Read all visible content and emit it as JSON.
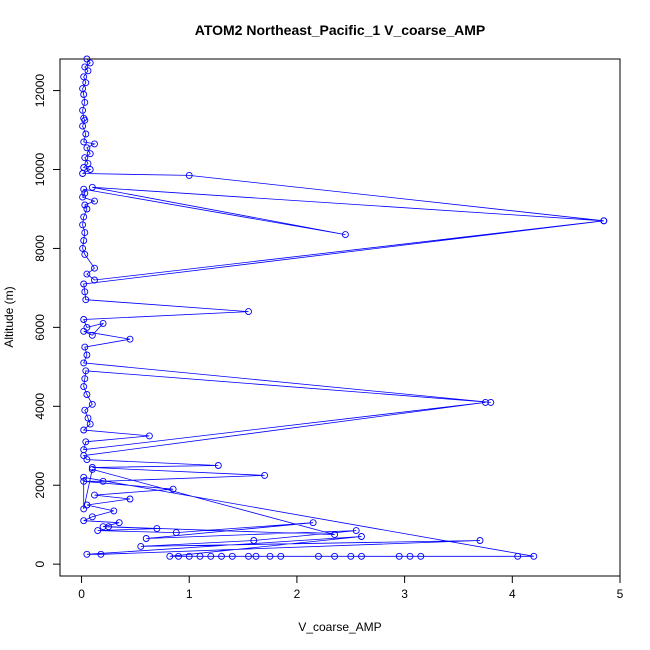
{
  "chart_data": {
    "type": "line",
    "title": "ATOM2 Northeast_Pacific_1 V_coarse_AMP",
    "xlabel": "V_coarse_AMP",
    "ylabel": "Altitude (m)",
    "xlim": [
      -0.2,
      5.0
    ],
    "ylim": [
      -300,
      12800
    ],
    "xticks": [
      0,
      1,
      2,
      3,
      4,
      5
    ],
    "yticks": [
      0,
      2000,
      4000,
      6000,
      8000,
      10000,
      12000
    ],
    "series_color": "#0000ff",
    "series": [
      {
        "marker": "open-circle",
        "points": [
          [
            0.05,
            12800
          ],
          [
            0.08,
            12700
          ],
          [
            0.03,
            12600
          ],
          [
            0.06,
            12500
          ],
          [
            0.02,
            12350
          ],
          [
            0.04,
            12200
          ],
          [
            0.01,
            12050
          ],
          [
            0.02,
            11900
          ],
          [
            0.03,
            11700
          ],
          [
            0.01,
            11500
          ],
          [
            0.02,
            11300
          ],
          [
            0.03,
            11250
          ],
          [
            0.01,
            11100
          ],
          [
            0.04,
            10900
          ],
          [
            0.02,
            10700
          ],
          [
            0.12,
            10650
          ],
          [
            0.05,
            10550
          ],
          [
            0.08,
            10400
          ],
          [
            0.03,
            10300
          ],
          [
            0.06,
            10150
          ],
          [
            0.02,
            10050
          ],
          [
            0.08,
            10000
          ],
          [
            0.01,
            9900
          ],
          [
            1.0,
            9850
          ],
          [
            4.85,
            8700
          ],
          [
            0.1,
            9550
          ],
          [
            2.45,
            8350
          ],
          [
            0.02,
            9500
          ],
          [
            0.03,
            9400
          ],
          [
            0.01,
            9300
          ],
          [
            0.12,
            9200
          ],
          [
            0.03,
            9100
          ],
          [
            0.05,
            9000
          ],
          [
            0.02,
            8800
          ],
          [
            0.01,
            8600
          ],
          [
            0.03,
            8400
          ],
          [
            0.02,
            8200
          ],
          [
            0.01,
            8000
          ],
          [
            0.03,
            7850
          ],
          [
            0.12,
            7500
          ],
          [
            0.05,
            7350
          ],
          [
            0.12,
            7200
          ],
          [
            4.85,
            8700
          ],
          [
            0.02,
            7100
          ],
          [
            0.03,
            6900
          ],
          [
            0.04,
            6700
          ],
          [
            1.55,
            6400
          ],
          [
            0.02,
            6200
          ],
          [
            0.05,
            6000
          ],
          [
            0.2,
            6100
          ],
          [
            0.1,
            5800
          ],
          [
            0.02,
            5900
          ],
          [
            0.45,
            5700
          ],
          [
            0.03,
            5500
          ],
          [
            0.05,
            5300
          ],
          [
            0.02,
            5100
          ],
          [
            3.8,
            4100
          ],
          [
            0.04,
            4900
          ],
          [
            0.03,
            4700
          ],
          [
            0.02,
            4500
          ],
          [
            0.05,
            4300
          ],
          [
            0.1,
            4050
          ],
          [
            0.03,
            3900
          ],
          [
            0.06,
            3700
          ],
          [
            0.08,
            3550
          ],
          [
            0.02,
            3400
          ],
          [
            0.63,
            3250
          ],
          [
            0.04,
            3100
          ],
          [
            0.02,
            2900
          ],
          [
            3.75,
            4100
          ],
          [
            0.02,
            2750
          ],
          [
            0.05,
            2650
          ],
          [
            1.27,
            2500
          ],
          [
            0.1,
            2450
          ],
          [
            1.7,
            2250
          ],
          [
            0.2,
            2100
          ],
          [
            0.02,
            2100
          ],
          [
            0.85,
            1900
          ],
          [
            0.12,
            1750
          ],
          [
            0.45,
            1650
          ],
          [
            0.05,
            1500
          ],
          [
            0.3,
            1350
          ],
          [
            0.1,
            1200
          ],
          [
            0.02,
            1100
          ],
          [
            0.35,
            1050
          ],
          [
            0.2,
            950
          ],
          [
            0.7,
            900
          ],
          [
            0.15,
            850
          ],
          [
            0.88,
            800
          ],
          [
            2.15,
            1050
          ],
          [
            0.6,
            650
          ],
          [
            2.55,
            850
          ],
          [
            1.6,
            600
          ],
          [
            0.55,
            450
          ],
          [
            3.7,
            600
          ],
          [
            0.18,
            250
          ],
          [
            0.05,
            250
          ],
          [
            2.6,
            700
          ],
          [
            0.82,
            200
          ],
          [
            0.9,
            200
          ],
          [
            1.0,
            200
          ],
          [
            1.1,
            200
          ],
          [
            1.2,
            200
          ],
          [
            1.3,
            200
          ],
          [
            1.4,
            200
          ],
          [
            1.55,
            200
          ],
          [
            1.62,
            200
          ],
          [
            1.75,
            200
          ],
          [
            1.85,
            200
          ],
          [
            2.2,
            200
          ],
          [
            2.35,
            200
          ],
          [
            2.5,
            200
          ],
          [
            2.6,
            200
          ],
          [
            2.95,
            200
          ],
          [
            3.05,
            200
          ],
          [
            3.15,
            200
          ],
          [
            4.05,
            200
          ],
          [
            4.2,
            200
          ],
          [
            0.02,
            2200
          ],
          [
            0.02,
            1400
          ],
          [
            0.1,
            2400
          ],
          [
            2.35,
            750
          ],
          [
            0.25,
            950
          ]
        ]
      }
    ]
  }
}
